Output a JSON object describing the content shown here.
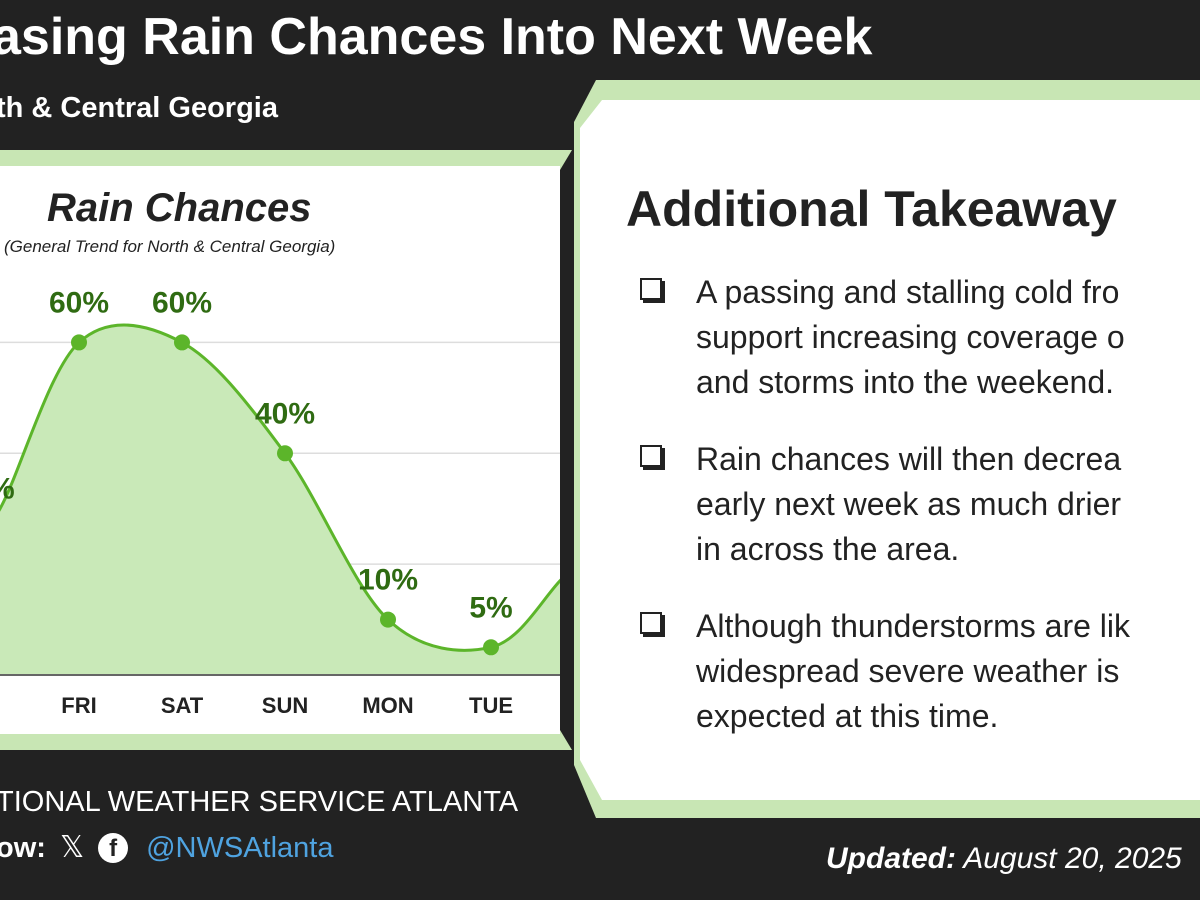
{
  "banner": {
    "title": "asing Rain Chances Into Next Week",
    "subtitle": "th & Central Georgia"
  },
  "colors": {
    "banner_bg": "#222222",
    "accent_green": "#c8e6b4",
    "line_green": "#5cb52a",
    "label_green": "#2f6b12",
    "fill_green": "#c9e9b8",
    "handle_blue": "#4fa3e0"
  },
  "chart_data": {
    "type": "area",
    "title": "Rain Chances",
    "subtitle": "(General Trend for North & Central Georgia)",
    "categories": [
      "FRI",
      "SAT",
      "SUN",
      "MON",
      "TUE"
    ],
    "values": [
      60,
      60,
      40,
      10,
      5
    ],
    "data_labels": [
      "60%",
      "60%",
      "40%",
      "10%",
      "5%"
    ],
    "partial_left_label": "%",
    "ylim": [
      0,
      70
    ],
    "grid": true,
    "legend": "none"
  },
  "takeaways": {
    "title": "Additional Takeaway",
    "items": [
      {
        "text": "A passing and stalling cold fro\nsupport increasing coverage o\nand storms into the weekend."
      },
      {
        "text": "Rain chances will then decrea\nearly next week as much drier\nin across the area."
      },
      {
        "text": "Although thunderstorms are lik\nwidespread severe weather is\nexpected at this time."
      }
    ]
  },
  "footer": {
    "org": "TIONAL WEATHER SERVICE ATLANTA",
    "follow_label": "ow:",
    "x_icon": "x-logo-icon",
    "fb_icon": "facebook-icon",
    "handle": "@NWSAtlanta",
    "updated_label": "Updated:",
    "updated_date": "August 20, 2025"
  }
}
